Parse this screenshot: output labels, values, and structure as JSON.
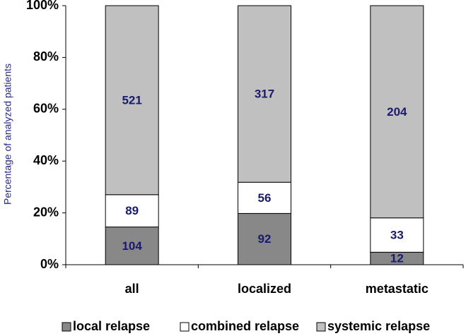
{
  "chart_data": {
    "type": "bar",
    "stacking": "percent",
    "y_label": "Percentage of analyzed patients",
    "categories": [
      "all",
      "localized",
      "metastatic"
    ],
    "series": [
      {
        "name": "local relapse",
        "color": "#888888",
        "values": [
          104,
          92,
          12
        ]
      },
      {
        "name": "combined relapse",
        "color": "#ffffff",
        "values": [
          89,
          56,
          33
        ]
      },
      {
        "name": "systemic relapse",
        "color": "#c0c0c0",
        "values": [
          521,
          317,
          204
        ]
      }
    ],
    "ylim": [
      0,
      100
    ],
    "yticks": [
      {
        "value": 0,
        "label": "0%"
      },
      {
        "value": 20,
        "label": "20%"
      },
      {
        "value": 40,
        "label": "40%"
      },
      {
        "value": 60,
        "label": "60%"
      },
      {
        "value": 80,
        "label": "80%"
      },
      {
        "value": 100,
        "label": "100%"
      }
    ],
    "legend": "bottom"
  }
}
